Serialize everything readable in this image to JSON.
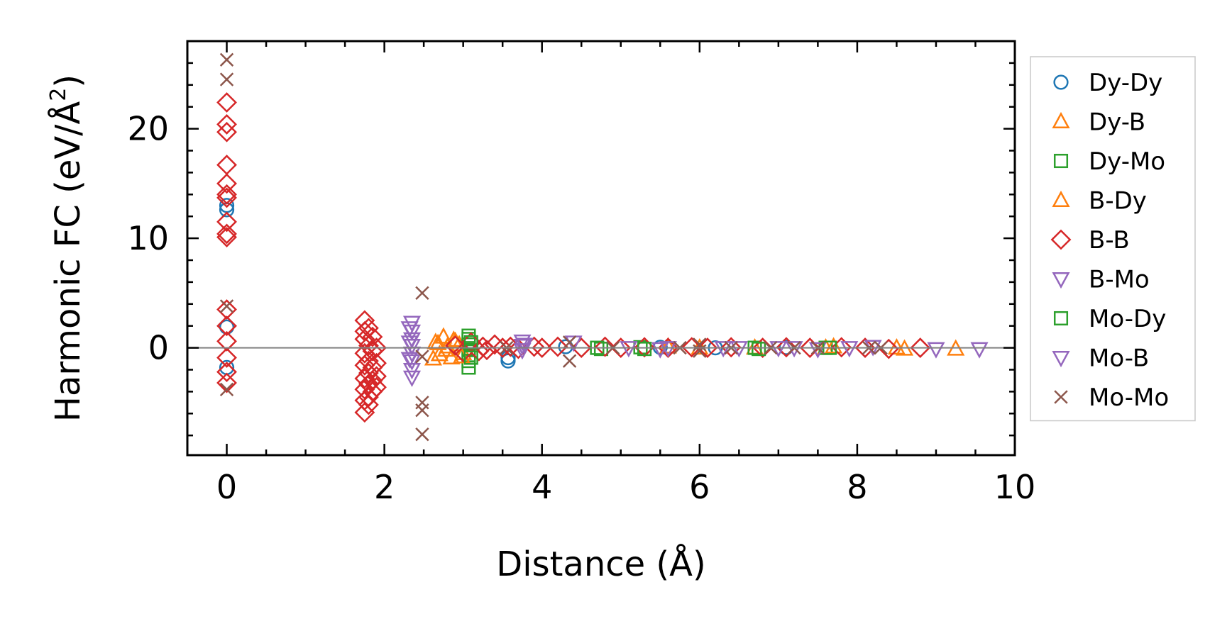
{
  "chart_data": {
    "type": "scatter",
    "xlabel": "Distance (Å)",
    "ylabel_main": "Harmonic FC (eV/Å",
    "ylabel_sup": "2",
    "ylabel_close": ")",
    "xlim": [
      -0.5,
      10
    ],
    "ylim": [
      -9.8,
      28
    ],
    "xticks": [
      0,
      2,
      4,
      6,
      8,
      10
    ],
    "xtick_labels": [
      "0",
      "2",
      "4",
      "6",
      "8",
      "10"
    ],
    "yticks": [
      0,
      10,
      20
    ],
    "ytick_labels": [
      "0",
      "10",
      "20"
    ],
    "zero_line": true,
    "grid": false,
    "legend_position": "outside-right",
    "series": [
      {
        "name": "Dy-Dy",
        "marker": "circle",
        "color": "#1f77b4",
        "points": [
          [
            0,
            13.0
          ],
          [
            0,
            12.6
          ],
          [
            0,
            1.9
          ],
          [
            0,
            -1.8
          ],
          [
            3.57,
            -1.2
          ],
          [
            3.57,
            -0.9
          ],
          [
            4.3,
            0.1
          ],
          [
            5.5,
            0.05
          ],
          [
            6.2,
            0.0
          ],
          [
            7.1,
            0.02
          ]
        ]
      },
      {
        "name": "Dy-B",
        "marker": "triangle-up",
        "color": "#ff7f0e",
        "points": [
          [
            2.62,
            -1.0
          ],
          [
            2.65,
            0.5
          ],
          [
            2.7,
            -0.6
          ],
          [
            2.75,
            1.0
          ],
          [
            2.8,
            0.1
          ],
          [
            2.85,
            -0.9
          ],
          [
            2.9,
            0.6
          ],
          [
            2.95,
            0.3
          ],
          [
            3.0,
            -0.5
          ],
          [
            5.6,
            0.1
          ],
          [
            6.7,
            0.0
          ],
          [
            7.6,
            0.0
          ],
          [
            8.6,
            -0.1
          ],
          [
            9.25,
            -0.1
          ]
        ]
      },
      {
        "name": "Dy-Mo",
        "marker": "square",
        "color": "#2ca02c",
        "points": [
          [
            3.07,
            0.8
          ],
          [
            3.07,
            0.3
          ],
          [
            3.07,
            -0.2
          ],
          [
            3.07,
            -0.7
          ],
          [
            3.07,
            -1.2
          ],
          [
            3.07,
            -1.8
          ],
          [
            3.07,
            1.1
          ],
          [
            4.75,
            -0.1
          ],
          [
            5.25,
            0.05
          ],
          [
            6.7,
            0.0
          ],
          [
            7.6,
            0.0
          ]
        ]
      },
      {
        "name": "B-Dy",
        "marker": "triangle-up",
        "color": "#ff7f0e",
        "points": [
          [
            2.68,
            0.4
          ],
          [
            2.78,
            -0.2
          ],
          [
            2.88,
            0.7
          ],
          [
            2.98,
            -0.8
          ],
          [
            6.0,
            0.0
          ],
          [
            7.7,
            0.1
          ],
          [
            8.5,
            0.0
          ]
        ]
      },
      {
        "name": "B-B",
        "marker": "diamond",
        "color": "#d62728",
        "points": [
          [
            0,
            22.4
          ],
          [
            0,
            20.4
          ],
          [
            0,
            19.7
          ],
          [
            0,
            16.7
          ],
          [
            0,
            15.0
          ],
          [
            0,
            14.0
          ],
          [
            0,
            13.7
          ],
          [
            0,
            11.5
          ],
          [
            0,
            10.4
          ],
          [
            0,
            10.1
          ],
          [
            0,
            3.5
          ],
          [
            0,
            2.0
          ],
          [
            0,
            0.6
          ],
          [
            0,
            -0.9
          ],
          [
            0,
            -2.2
          ],
          [
            0,
            -3.2
          ],
          [
            1.75,
            2.5
          ],
          [
            1.75,
            1.5
          ],
          [
            1.75,
            0.8
          ],
          [
            1.75,
            -0.5
          ],
          [
            1.75,
            -1.6
          ],
          [
            1.75,
            -2.8
          ],
          [
            1.75,
            -3.8
          ],
          [
            1.75,
            -4.8
          ],
          [
            1.75,
            -5.9
          ],
          [
            1.8,
            1.8
          ],
          [
            1.8,
            0.2
          ],
          [
            1.8,
            -1.2
          ],
          [
            1.8,
            -2.3
          ],
          [
            1.8,
            -3.3
          ],
          [
            1.8,
            -4.5
          ],
          [
            1.8,
            -5.2
          ],
          [
            1.85,
            1.0
          ],
          [
            1.85,
            -0.3
          ],
          [
            1.85,
            -1.8
          ],
          [
            1.85,
            -3.0
          ],
          [
            1.85,
            -4.0
          ],
          [
            1.9,
            0.0
          ],
          [
            1.9,
            -1.4
          ],
          [
            1.9,
            -2.6
          ],
          [
            1.9,
            -3.6
          ],
          [
            2.9,
            0.2
          ],
          [
            3.0,
            -0.4
          ],
          [
            3.1,
            0.5
          ],
          [
            3.2,
            -0.3
          ],
          [
            3.25,
            0.1
          ],
          [
            3.3,
            -0.2
          ],
          [
            3.4,
            0.3
          ],
          [
            3.5,
            0.0
          ],
          [
            3.6,
            0.1
          ],
          [
            3.7,
            -0.1
          ],
          [
            3.9,
            0.1
          ],
          [
            4.0,
            0.0
          ],
          [
            4.2,
            0.1
          ],
          [
            4.5,
            0.0
          ],
          [
            4.8,
            0.1
          ],
          [
            5.0,
            0.0
          ],
          [
            5.3,
            0.05
          ],
          [
            5.6,
            0.0
          ],
          [
            5.9,
            0.05
          ],
          [
            6.1,
            0.0
          ],
          [
            6.4,
            0.05
          ],
          [
            6.8,
            0.0
          ],
          [
            7.1,
            0.05
          ],
          [
            7.4,
            0.0
          ],
          [
            7.8,
            0.05
          ],
          [
            8.1,
            0.0
          ],
          [
            8.4,
            -0.1
          ],
          [
            8.8,
            0.0
          ]
        ]
      },
      {
        "name": "B-Mo",
        "marker": "triangle-down",
        "color": "#9467bd",
        "points": [
          [
            2.35,
            2.3
          ],
          [
            2.35,
            1.5
          ],
          [
            2.35,
            0.8
          ],
          [
            2.35,
            0.2
          ],
          [
            2.35,
            -0.5
          ],
          [
            2.35,
            -1.2
          ],
          [
            2.35,
            -2.0
          ],
          [
            2.35,
            -2.7
          ],
          [
            3.75,
            0.6
          ],
          [
            3.75,
            0.2
          ],
          [
            3.75,
            -0.2
          ],
          [
            4.4,
            0.5
          ],
          [
            5.1,
            0.0
          ],
          [
            5.5,
            -0.1
          ],
          [
            6.5,
            0.0
          ],
          [
            7.0,
            0.0
          ],
          [
            7.5,
            -0.1
          ],
          [
            8.2,
            0.1
          ],
          [
            9.0,
            -0.1
          ],
          [
            9.55,
            -0.1
          ]
        ]
      },
      {
        "name": "Mo-Dy",
        "marker": "square",
        "color": "#2ca02c",
        "points": [
          [
            3.1,
            0.5
          ],
          [
            3.1,
            -0.9
          ],
          [
            4.7,
            0.0
          ],
          [
            5.3,
            -0.1
          ],
          [
            6.75,
            -0.1
          ],
          [
            7.65,
            0.0
          ]
        ]
      },
      {
        "name": "Mo-B",
        "marker": "triangle-down",
        "color": "#9467bd",
        "points": [
          [
            2.32,
            1.8
          ],
          [
            2.32,
            0.5
          ],
          [
            2.32,
            -1.0
          ],
          [
            3.78,
            0.3
          ],
          [
            5.6,
            0.0
          ],
          [
            6.3,
            0.0
          ],
          [
            7.2,
            0.0
          ],
          [
            7.9,
            0.0
          ]
        ]
      },
      {
        "name": "Mo-Mo",
        "marker": "x",
        "color": "#8c564b",
        "points": [
          [
            0,
            26.3
          ],
          [
            0,
            24.5
          ],
          [
            0,
            3.8
          ],
          [
            0,
            -3.8
          ],
          [
            2.48,
            5.0
          ],
          [
            2.48,
            -0.8
          ],
          [
            2.48,
            -5.0
          ],
          [
            2.48,
            -5.7
          ],
          [
            2.48,
            -7.9
          ],
          [
            3.55,
            0.0
          ],
          [
            4.35,
            0.5
          ],
          [
            4.35,
            -1.2
          ],
          [
            4.9,
            0.0
          ],
          [
            5.75,
            0.0
          ],
          [
            6.0,
            -0.3
          ],
          [
            6.0,
            0.3
          ],
          [
            6.4,
            0.0
          ],
          [
            6.9,
            0.0
          ],
          [
            7.2,
            0.0
          ],
          [
            7.5,
            0.0
          ],
          [
            8.15,
            0.0
          ],
          [
            8.3,
            0.0
          ]
        ]
      }
    ]
  }
}
